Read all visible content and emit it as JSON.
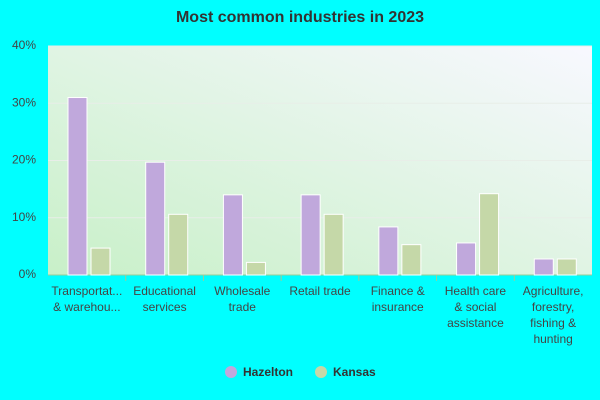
{
  "chart_data": {
    "type": "bar",
    "title": "Most common industries in 2023",
    "categories": [
      [
        "Transportat...",
        "& warehou..."
      ],
      [
        "Educational",
        "services"
      ],
      [
        "Wholesale",
        "trade"
      ],
      [
        "Retail trade"
      ],
      [
        "Finance &",
        "insurance"
      ],
      [
        "Health care",
        "& social",
        "assistance"
      ],
      [
        "Agriculture,",
        "forestry,",
        "fishing &",
        "hunting"
      ]
    ],
    "series": [
      {
        "name": "Hazelton",
        "color": "#c0a8dc",
        "values": [
          31,
          19.7,
          14,
          14,
          8.4,
          5.6,
          2.8
        ]
      },
      {
        "name": "Kansas",
        "color": "#c5d8a8",
        "values": [
          4.7,
          10.6,
          2.2,
          10.6,
          5.3,
          14.2,
          2.8
        ]
      }
    ],
    "ylim": [
      0,
      40
    ],
    "yticks": [
      {
        "value": 0,
        "label": "0%"
      },
      {
        "value": 10,
        "label": "10%"
      },
      {
        "value": 20,
        "label": "20%"
      },
      {
        "value": 30,
        "label": "30%"
      },
      {
        "value": 40,
        "label": "40%"
      }
    ],
    "grid": true
  }
}
